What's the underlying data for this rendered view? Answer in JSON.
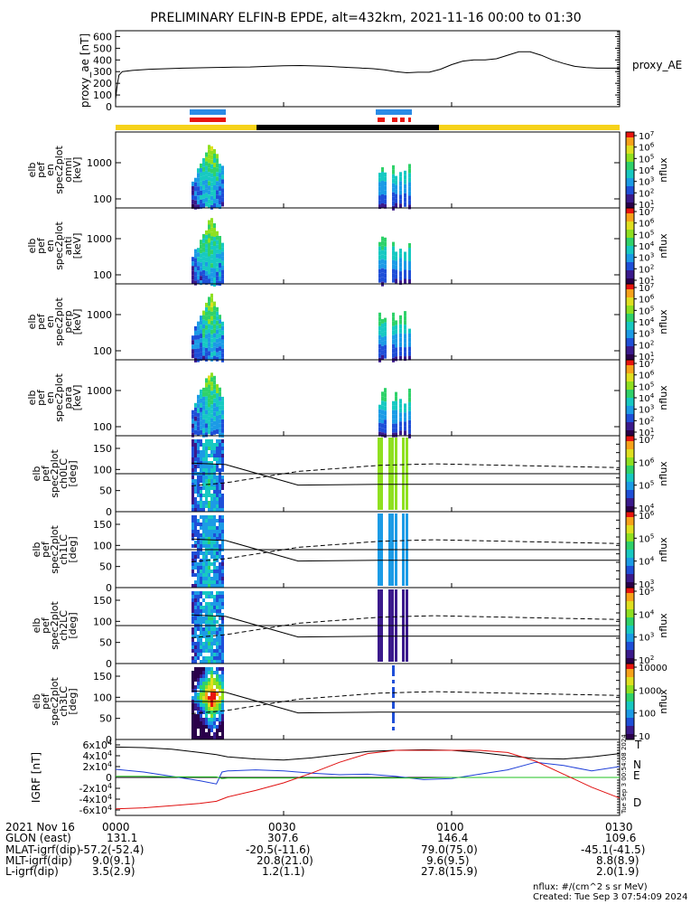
{
  "title": "PRELIMINARY ELFIN-B EPDE, alt=432km, 2021-11-16 00:00 to 01:30",
  "proxy_ae": {
    "ylabel": "proxy_ae [nT]",
    "legend": "proxy_AE",
    "yticks": [
      "0",
      "100",
      "200",
      "300",
      "400",
      "500",
      "600"
    ],
    "ylim": [
      0,
      650
    ],
    "t": [
      0,
      2,
      4,
      6,
      12,
      30,
      60,
      90,
      120,
      150,
      180,
      210,
      240,
      270,
      300,
      330,
      360,
      380,
      400,
      420,
      435,
      440,
      450,
      460,
      470,
      480,
      500,
      520,
      540,
      560,
      580,
      600,
      620,
      640,
      660,
      680,
      700,
      720,
      740,
      760,
      780,
      800,
      820,
      840,
      860,
      880,
      900
    ],
    "v": [
      60,
      150,
      220,
      270,
      300,
      310,
      320,
      325,
      330,
      333,
      336,
      338,
      340,
      345,
      350,
      352,
      348,
      345,
      340,
      335,
      332,
      330,
      328,
      325,
      320,
      315,
      300,
      290,
      295,
      295,
      320,
      360,
      390,
      400,
      400,
      410,
      440,
      470,
      470,
      440,
      400,
      370,
      345,
      335,
      330,
      330,
      330
    ]
  },
  "colorbar_labels": [
    "nflux",
    "nflux",
    "nflux",
    "nflux",
    "nflux",
    "nflux",
    "nflux",
    "nflux"
  ],
  "colorbar_ticks": [
    [
      "10^1",
      "10^2",
      "10^3",
      "10^4",
      "10^5",
      "10^6",
      "10^7"
    ],
    [
      "10^1",
      "10^2",
      "10^3",
      "10^4",
      "10^5",
      "10^6",
      "10^7"
    ],
    [
      "10^1",
      "10^2",
      "10^3",
      "10^4",
      "10^5",
      "10^6",
      "10^7"
    ],
    [
      "10^1",
      "10^2",
      "10^3",
      "10^4",
      "10^5",
      "10^6",
      "10^7"
    ],
    [
      "10^4",
      "10^5",
      "10^6",
      "10^7"
    ],
    [
      "10^3",
      "10^4",
      "10^5",
      "10^6"
    ],
    [
      "10^2",
      "10^3",
      "10^4",
      "10^5"
    ],
    [
      "10",
      "100",
      "1000",
      "10000"
    ]
  ],
  "panels": [
    {
      "label": [
        "elb",
        "pef",
        "en",
        "spec2plot",
        "omni",
        "[keV]"
      ],
      "yticks": [
        "100",
        "1000"
      ]
    },
    {
      "label": [
        "elb",
        "pef",
        "en",
        "spec2plot",
        "anti",
        "[keV]"
      ],
      "yticks": [
        "100",
        "1000"
      ]
    },
    {
      "label": [
        "elb",
        "pef",
        "en",
        "spec2plot",
        "perp",
        "[keV]"
      ],
      "yticks": [
        "100",
        "1000"
      ]
    },
    {
      "label": [
        "elb",
        "pef",
        "en",
        "spec2plot",
        "para",
        "[keV]"
      ],
      "yticks": [
        "100",
        "1000"
      ]
    },
    {
      "label": [
        "elb",
        "pef",
        "spec2plot",
        "ch0LC",
        "[deg]"
      ],
      "yticks": [
        "0",
        "50",
        "100",
        "150"
      ]
    },
    {
      "label": [
        "elb",
        "pef",
        "spec2plot",
        "ch1LC",
        "[deg]"
      ],
      "yticks": [
        "0",
        "50",
        "100",
        "150"
      ]
    },
    {
      "label": [
        "elb",
        "pef",
        "spec2plot",
        "ch2LC",
        "[deg]"
      ],
      "yticks": [
        "0",
        "50",
        "100",
        "150"
      ]
    },
    {
      "label": [
        "elb",
        "pef",
        "spec2plot",
        "ch3LC",
        "[deg]"
      ],
      "yticks": [
        "0",
        "50",
        "100",
        "150"
      ]
    }
  ],
  "igrf": {
    "ylabel": "IGRF [nT]",
    "yticks": [
      "-6x10^4",
      "-4x10^4",
      "-2x10^4",
      "0",
      "2x10^4",
      "4x10^4",
      "6x10^4"
    ],
    "legend": [
      {
        "name": "T",
        "color": "#000000"
      },
      {
        "name": "N",
        "color": "#1f3fd8"
      },
      {
        "name": "E",
        "color": "#20c020"
      },
      {
        "name": "D",
        "color": "#e01010"
      }
    ],
    "t": [
      0,
      50,
      100,
      150,
      180,
      190,
      200,
      250,
      300,
      350,
      400,
      450,
      500,
      550,
      600,
      650,
      700,
      750,
      800,
      850,
      900
    ],
    "T": [
      56,
      55,
      52,
      46,
      42,
      40,
      38,
      34,
      32,
      36,
      42,
      48,
      50,
      51,
      50,
      46,
      40,
      35,
      34,
      38,
      44
    ],
    "N": [
      15,
      10,
      2,
      -6,
      -12,
      10,
      12,
      14,
      12,
      8,
      5,
      6,
      2,
      -4,
      -2,
      6,
      14,
      28,
      22,
      12,
      20
    ],
    "E": [
      2,
      2,
      1,
      1,
      1,
      -2,
      -1,
      -1,
      -1,
      -1,
      -1,
      -1,
      -1,
      -1,
      0,
      0,
      0,
      0,
      0,
      0,
      0
    ],
    "D": [
      -58,
      -56,
      -52,
      -48,
      -44,
      -40,
      -36,
      -24,
      -10,
      8,
      28,
      44,
      50,
      50,
      50,
      50,
      46,
      30,
      6,
      -18,
      -38
    ]
  },
  "stamp": "Tue Sep 3 00:54:08 2024",
  "footer": {
    "date": "2021 Nov 16",
    "times": [
      "0000",
      "0030",
      "0100",
      "0130"
    ],
    "rows": [
      {
        "label": "GLON (east)",
        "values": [
          "131.1",
          "307.6",
          "146.4",
          "109.6"
        ]
      },
      {
        "label": "MLAT-igrf(dip)",
        "values": [
          "-57.2(-52.4)",
          "-20.5(-11.6)",
          "79.0(75.0)",
          "-45.1(-41.5)"
        ]
      },
      {
        "label": "MLT-igrf(dip)",
        "values": [
          "9.0(9.1)",
          "20.8(21.0)",
          "9.6(9.5)",
          "8.8(8.9)"
        ]
      },
      {
        "label": "L-igrf(dip)",
        "values": [
          "3.5(2.9)",
          "1.2(1.1)",
          "27.8(15.9)",
          "2.0(1.9)"
        ]
      }
    ],
    "units": "nflux: #/(cm^2 s sr MeV)",
    "created": "Created: Tue Sep  3 07:54:09 2024"
  },
  "colors": {
    "yellow": "#f6d21a",
    "black": "#000000",
    "blue": "#2b8be6",
    "red": "#e8140f"
  }
}
